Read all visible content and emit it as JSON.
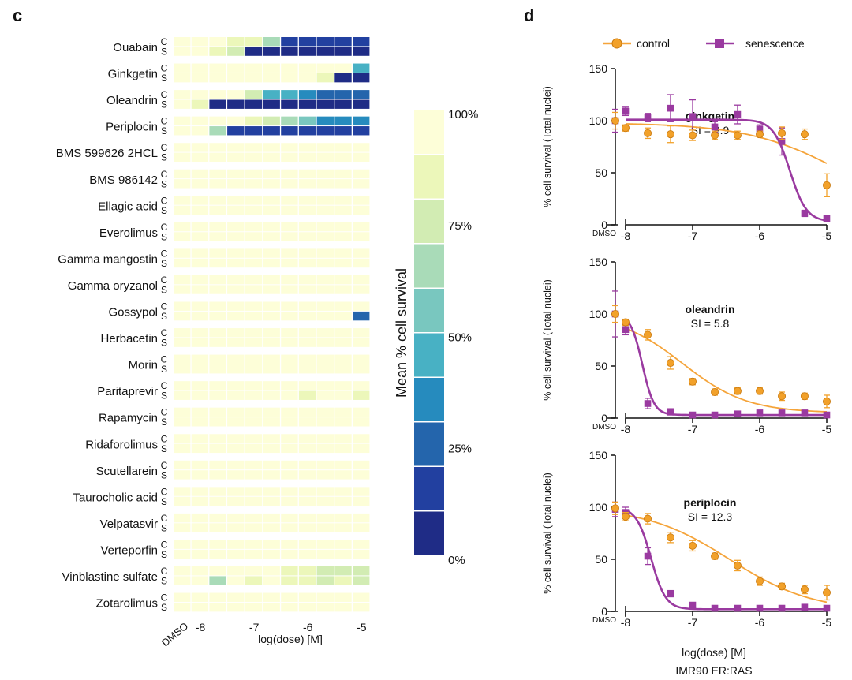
{
  "panel_c": {
    "letter": "c"
  },
  "panel_d": {
    "letter": "d",
    "footnote": "IMR90 ER:RAS"
  },
  "legend": {
    "control": "control",
    "senescence": "senescence"
  },
  "colors": {
    "control": "#f2a12a",
    "control_line": "#f5a43a",
    "senescence": "#9a3aa0",
    "axis": "#111111",
    "scale": [
      "#1f2c86",
      "#2240a0",
      "#2465ac",
      "#268bbe",
      "#48b1c4",
      "#79c7bf",
      "#a9dbb8",
      "#d2ecb3",
      "#ecf7ba",
      "#fdfed8"
    ]
  },
  "chart_data": [
    {
      "type": "heatmap",
      "xlabel": "log(dose) [M]",
      "x_tick_labels": [
        "DMSO",
        "-8",
        "-7",
        "-6",
        "-5"
      ],
      "x_tick_columns": [
        0,
        1,
        4,
        7,
        10
      ],
      "columns": [
        "DMSO",
        "-8",
        "-7.67",
        "-7.33",
        "-7",
        "-6.67",
        "-6.33",
        "-6",
        "-5.67",
        "-5.33",
        "-5"
      ],
      "row_type_labels": [
        "C",
        "S"
      ],
      "colorbar": {
        "label": "Mean % cell survival",
        "ticks": [
          "100%",
          "75%",
          "50%",
          "25%",
          "0%"
        ],
        "range": [
          0,
          100
        ]
      },
      "compounds": [
        {
          "name": "Ouabain",
          "C": [
            99,
            99,
            93,
            88,
            83,
            64,
            18,
            18,
            18,
            15,
            13
          ],
          "S": [
            99,
            93,
            86,
            73,
            8,
            8,
            8,
            8,
            8,
            8,
            8
          ]
        },
        {
          "name": "Ginkgetin",
          "C": [
            99,
            99,
            96,
            95,
            95,
            95,
            95,
            95,
            95,
            95,
            40
          ],
          "S": [
            99,
            99,
            98,
            98,
            98,
            98,
            98,
            98,
            88,
            8,
            8
          ]
        },
        {
          "name": "Oleandrin",
          "C": [
            99,
            99,
            96,
            90,
            73,
            46,
            40,
            33,
            28,
            25,
            25
          ],
          "S": [
            99,
            89,
            6,
            6,
            6,
            6,
            6,
            6,
            6,
            6,
            6
          ]
        },
        {
          "name": "Periplocin",
          "C": [
            99,
            99,
            96,
            93,
            83,
            76,
            66,
            54,
            38,
            30,
            30
          ],
          "S": [
            99,
            99,
            66,
            10,
            10,
            10,
            10,
            10,
            10,
            10,
            10
          ]
        },
        {
          "name": "BMS 599626 2HCL",
          "C": [
            99,
            99,
            99,
            99,
            96,
            99,
            99,
            99,
            99,
            95,
            99
          ],
          "S": [
            99,
            99,
            99,
            99,
            99,
            99,
            99,
            99,
            99,
            99,
            99
          ]
        },
        {
          "name": "BMS 986142",
          "C": [
            99,
            99,
            99,
            99,
            99,
            99,
            99,
            99,
            99,
            99,
            99
          ],
          "S": [
            99,
            99,
            99,
            99,
            99,
            99,
            99,
            99,
            99,
            99,
            99
          ]
        },
        {
          "name": "Ellagic acid",
          "C": [
            99,
            99,
            99,
            99,
            99,
            99,
            99,
            99,
            99,
            99,
            99
          ],
          "S": [
            99,
            99,
            99,
            99,
            99,
            99,
            99,
            99,
            99,
            99,
            99
          ]
        },
        {
          "name": "Everolimus",
          "C": [
            99,
            99,
            99,
            99,
            99,
            99,
            99,
            99,
            99,
            99,
            99
          ],
          "S": [
            99,
            99,
            99,
            99,
            96,
            99,
            99,
            99,
            96,
            96,
            96
          ]
        },
        {
          "name": "Gamma mangostin",
          "C": [
            99,
            99,
            99,
            99,
            99,
            99,
            96,
            99,
            99,
            96,
            99
          ],
          "S": [
            99,
            99,
            99,
            99,
            99,
            99,
            99,
            99,
            99,
            99,
            90
          ]
        },
        {
          "name": "Gamma oryzanol",
          "C": [
            99,
            99,
            99,
            99,
            99,
            99,
            99,
            96,
            96,
            96,
            96
          ],
          "S": [
            99,
            99,
            99,
            99,
            99,
            99,
            99,
            99,
            99,
            99,
            99
          ]
        },
        {
          "name": "Gossypol",
          "C": [
            99,
            99,
            99,
            99,
            99,
            99,
            99,
            99,
            99,
            99,
            96
          ],
          "S": [
            99,
            99,
            99,
            99,
            99,
            99,
            99,
            99,
            99,
            99,
            24
          ]
        },
        {
          "name": "Herbacetin",
          "C": [
            99,
            99,
            99,
            99,
            99,
            99,
            99,
            93,
            99,
            99,
            99
          ],
          "S": [
            99,
            99,
            99,
            99,
            99,
            96,
            99,
            93,
            96,
            99,
            99
          ]
        },
        {
          "name": "Morin",
          "C": [
            99,
            99,
            99,
            99,
            96,
            99,
            96,
            99,
            96,
            99,
            99
          ],
          "S": [
            99,
            99,
            99,
            99,
            99,
            99,
            99,
            99,
            99,
            99,
            93
          ]
        },
        {
          "name": "Paritaprevir",
          "C": [
            99,
            99,
            99,
            96,
            96,
            96,
            96,
            93,
            99,
            99,
            99
          ],
          "S": [
            99,
            93,
            96,
            96,
            93,
            93,
            93,
            86,
            93,
            96,
            88
          ]
        },
        {
          "name": "Rapamycin",
          "C": [
            99,
            99,
            99,
            99,
            96,
            99,
            96,
            96,
            96,
            99,
            99
          ],
          "S": [
            99,
            99,
            99,
            99,
            99,
            99,
            99,
            99,
            99,
            99,
            99
          ]
        },
        {
          "name": "Ridaforolimus",
          "C": [
            99,
            99,
            99,
            96,
            99,
            93,
            99,
            96,
            93,
            99,
            96
          ],
          "S": [
            99,
            99,
            99,
            99,
            99,
            99,
            99,
            99,
            99,
            99,
            99
          ]
        },
        {
          "name": "Scutellarein",
          "C": [
            99,
            99,
            99,
            99,
            99,
            99,
            99,
            96,
            96,
            99,
            99
          ],
          "S": [
            99,
            99,
            99,
            99,
            99,
            99,
            99,
            99,
            99,
            99,
            99
          ]
        },
        {
          "name": "Taurocholic acid",
          "C": [
            99,
            99,
            99,
            99,
            96,
            99,
            99,
            99,
            99,
            99,
            99
          ],
          "S": [
            99,
            99,
            99,
            99,
            99,
            99,
            99,
            99,
            99,
            99,
            99
          ]
        },
        {
          "name": "Velpatasvir",
          "C": [
            99,
            99,
            99,
            99,
            99,
            99,
            96,
            99,
            99,
            99,
            99
          ],
          "S": [
            99,
            99,
            99,
            99,
            96,
            96,
            93,
            99,
            99,
            99,
            99
          ]
        },
        {
          "name": "Verteporfin",
          "C": [
            99,
            99,
            99,
            99,
            99,
            99,
            99,
            99,
            99,
            99,
            99
          ],
          "S": [
            99,
            99,
            99,
            99,
            96,
            99,
            96,
            99,
            99,
            96,
            99
          ]
        },
        {
          "name": "Vinblastine sulfate",
          "C": [
            99,
            99,
            99,
            99,
            99,
            93,
            86,
            86,
            73,
            73,
            73
          ],
          "S": [
            99,
            99,
            66,
            99,
            88,
            93,
            84,
            84,
            73,
            83,
            75
          ]
        },
        {
          "name": "Zotarolimus",
          "C": [
            99,
            99,
            99,
            99,
            99,
            99,
            99,
            99,
            96,
            99,
            99
          ],
          "S": [
            99,
            99,
            99,
            99,
            96,
            99,
            99,
            99,
            99,
            99,
            99
          ]
        }
      ]
    },
    {
      "type": "scatter",
      "title": "ginkgetin",
      "subtitle": "SI = 8.9",
      "xlabel": "",
      "ylabel": "% cell survival (Total nuclei)",
      "xlim": [
        -8,
        -5
      ],
      "ylim": [
        0,
        150
      ],
      "x_ticks": [
        "-8",
        "-7",
        "-6",
        "-5"
      ],
      "y_ticks": [
        "0",
        "50",
        "100",
        "150"
      ],
      "dmso_label": "DMSO",
      "x": [
        -8,
        -7.67,
        -7.33,
        -7,
        -6.67,
        -6.33,
        -6,
        -5.67,
        -5.33,
        -5
      ],
      "series": [
        {
          "name": "control",
          "dmso": {
            "value": 100,
            "err": 8
          },
          "values": [
            93,
            88,
            87,
            86,
            86,
            86,
            87,
            88,
            87,
            38
          ],
          "errors": [
            3,
            5,
            8,
            5,
            4,
            4,
            3,
            6,
            5,
            11
          ],
          "fit": {
            "top": 98,
            "bottom": 0,
            "log_ic50": -4.7,
            "hill": 0.6
          }
        },
        {
          "name": "senescence",
          "dmso": {
            "value": 100,
            "err": 11
          },
          "values": [
            109,
            103,
            112,
            104,
            94,
            106,
            92,
            80,
            11,
            6
          ],
          "errors": [
            4,
            4,
            13,
            16,
            5,
            9,
            4,
            13,
            3,
            2
          ],
          "fit": {
            "top": 101,
            "bottom": 3,
            "log_ic50": -5.55,
            "hill": 3.5
          }
        }
      ]
    },
    {
      "type": "scatter",
      "title": "oleandrin",
      "subtitle": "SI = 5.8",
      "xlabel": "",
      "ylabel": "% cell survival (Total nuclei)",
      "xlim": [
        -8,
        -5
      ],
      "ylim": [
        0,
        150
      ],
      "x_ticks": [
        "-8",
        "-7",
        "-6",
        "-5"
      ],
      "y_ticks": [
        "0",
        "50",
        "100",
        "150"
      ],
      "dmso_label": "DMSO",
      "x": [
        -8,
        -7.67,
        -7.33,
        -7,
        -6.67,
        -6.33,
        -6,
        -5.67,
        -5.33,
        -5
      ],
      "series": [
        {
          "name": "control",
          "dmso": {
            "value": 100,
            "err": 8
          },
          "values": [
            92,
            80,
            53,
            35,
            25,
            26,
            26,
            21,
            21,
            16
          ],
          "errors": [
            3,
            5,
            6,
            3,
            3,
            3,
            3,
            4,
            3,
            6
          ],
          "fit": {
            "top": 100,
            "bottom": 5,
            "log_ic50": -7.15,
            "hill": 0.9
          }
        },
        {
          "name": "senescence",
          "dmso": {
            "value": 100,
            "err": 22
          },
          "values": [
            85,
            14,
            6,
            3,
            3,
            4,
            5,
            5,
            5,
            3
          ],
          "errors": [
            5,
            5,
            3,
            2,
            2,
            2,
            2,
            2,
            2,
            2
          ],
          "fit": {
            "top": 100,
            "bottom": 3,
            "log_ic50": -7.75,
            "hill": 5
          }
        }
      ]
    },
    {
      "type": "scatter",
      "title": "periplocin",
      "subtitle": "SI = 12.3",
      "xlabel": "log(dose) [M]",
      "ylabel": "% cell survival (Total nuclei)",
      "xlim": [
        -8,
        -5
      ],
      "ylim": [
        0,
        150
      ],
      "x_ticks": [
        "-8",
        "-7",
        "-6",
        "-5"
      ],
      "y_ticks": [
        "0",
        "50",
        "100",
        "150"
      ],
      "dmso_label": "DMSO",
      "x": [
        -8,
        -7.67,
        -7.33,
        -7,
        -6.67,
        -6.33,
        -6,
        -5.67,
        -5.33,
        -5
      ],
      "series": [
        {
          "name": "control",
          "dmso": {
            "value": 99,
            "err": 6
          },
          "values": [
            91,
            89,
            71,
            63,
            53,
            44,
            29,
            24,
            21,
            18
          ],
          "errors": [
            4,
            5,
            5,
            5,
            3,
            5,
            4,
            3,
            4,
            7
          ],
          "fit": {
            "top": 100,
            "bottom": 0,
            "log_ic50": -6.45,
            "hill": 0.7
          }
        },
        {
          "name": "senescence",
          "dmso": {
            "value": 98,
            "err": 7
          },
          "values": [
            95,
            53,
            17,
            6,
            3,
            3,
            3,
            3,
            4,
            3
          ],
          "errors": [
            5,
            8,
            3,
            2,
            2,
            2,
            2,
            2,
            2,
            2
          ],
          "fit": {
            "top": 100,
            "bottom": 2,
            "log_ic50": -7.62,
            "hill": 4
          }
        }
      ]
    }
  ]
}
